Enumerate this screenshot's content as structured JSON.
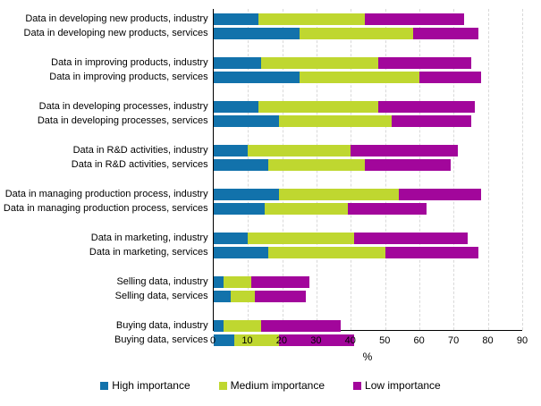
{
  "chart_data": {
    "type": "bar",
    "orientation": "horizontal-stacked",
    "title": "",
    "xlabel": "%",
    "xlim": [
      0,
      90
    ],
    "xticks": [
      0,
      10,
      20,
      30,
      40,
      50,
      60,
      70,
      80,
      90
    ],
    "grid": "vertical-dashed",
    "legend_position": "bottom",
    "series": [
      {
        "name": "High importance",
        "color": "#1272AB"
      },
      {
        "name": "Medium importance",
        "color": "#BFD730"
      },
      {
        "name": "Low importance",
        "color": "#A2069B"
      }
    ],
    "rows": [
      {
        "label": "Data in developing new products, industry",
        "values": [
          13,
          31,
          29
        ]
      },
      {
        "label": "Data in developing new products, services",
        "values": [
          25,
          33,
          19
        ]
      },
      {
        "label": "Data in improving products, industry",
        "values": [
          14,
          34,
          27
        ]
      },
      {
        "label": "Data in improving products, services",
        "values": [
          25,
          35,
          18
        ]
      },
      {
        "label": "Data in developing processes, industry",
        "values": [
          13,
          35,
          28
        ]
      },
      {
        "label": "Data in developing processes, services",
        "values": [
          19,
          33,
          23
        ]
      },
      {
        "label": "Data in R&D activities, industry",
        "values": [
          10,
          30,
          31
        ]
      },
      {
        "label": "Data in R&D activities, services",
        "values": [
          16,
          28,
          25
        ]
      },
      {
        "label": "Data in managing production process, industry",
        "values": [
          19,
          35,
          24
        ]
      },
      {
        "label": "Data in managing production process, services",
        "values": [
          15,
          24,
          23
        ]
      },
      {
        "label": "Data in marketing, industry",
        "values": [
          10,
          31,
          33
        ]
      },
      {
        "label": "Data in marketing, services",
        "values": [
          16,
          34,
          27
        ]
      },
      {
        "label": "Selling data, industry",
        "values": [
          3,
          8,
          17
        ]
      },
      {
        "label": "Selling data, services",
        "values": [
          5,
          7,
          15
        ]
      },
      {
        "label": "Buying data, industry",
        "values": [
          3,
          11,
          23
        ]
      },
      {
        "label": "Buying data, services",
        "values": [
          6,
          13,
          22
        ]
      }
    ]
  },
  "colors": {
    "axis": "#000000",
    "gridline": "#d9d9d9",
    "text": "#000000",
    "background": "#ffffff"
  }
}
